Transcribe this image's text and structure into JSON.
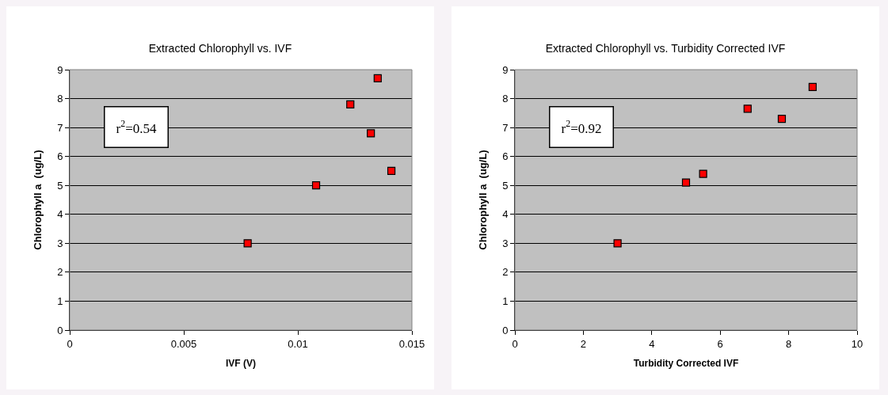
{
  "chart_data": [
    {
      "type": "scatter",
      "title": "Extracted Chlorophyll vs. IVF",
      "xlabel": "IVF (V)",
      "ylabel": "Chlorophyll a  (ug/L)",
      "annotations": [
        "r$^{2}$=0.54"
      ],
      "x": [
        0.0078,
        0.0108,
        0.0123,
        0.0132,
        0.0135,
        0.0141
      ],
      "series": [
        {
          "color": "#ff0000",
          "values": [
            3,
            5,
            7.8,
            6.8,
            8.7,
            5.5
          ]
        }
      ],
      "xlim": [
        0,
        0.015
      ],
      "xticks": [
        0,
        0.005,
        0.01,
        0.015
      ],
      "ylim": [
        0,
        9
      ],
      "yticks": [
        0,
        1,
        2,
        3,
        4,
        5,
        6,
        7,
        8,
        9
      ],
      "grid": "y",
      "marker": "square"
    },
    {
      "type": "scatter",
      "title": "Extracted Chlorophyll vs. Turbidity Corrected IVF",
      "xlabel": "Turbidity Corrected IVF",
      "ylabel": "Chlorophyll a  (ug/L)",
      "annotations": [
        "r$^{2}$=0.92"
      ],
      "x": [
        3,
        5,
        5.5,
        6.8,
        7.8,
        8.7
      ],
      "series": [
        {
          "color": "#ff0000",
          "values": [
            3,
            5.1,
            5.4,
            7.65,
            7.3,
            8.4
          ]
        }
      ],
      "xlim": [
        0,
        10
      ],
      "xticks": [
        0,
        2,
        4,
        6,
        8,
        10
      ],
      "ylim": [
        0,
        9
      ],
      "yticks": [
        0,
        1,
        2,
        3,
        4,
        5,
        6,
        7,
        8,
        9
      ],
      "grid": "y",
      "marker": "square"
    }
  ]
}
